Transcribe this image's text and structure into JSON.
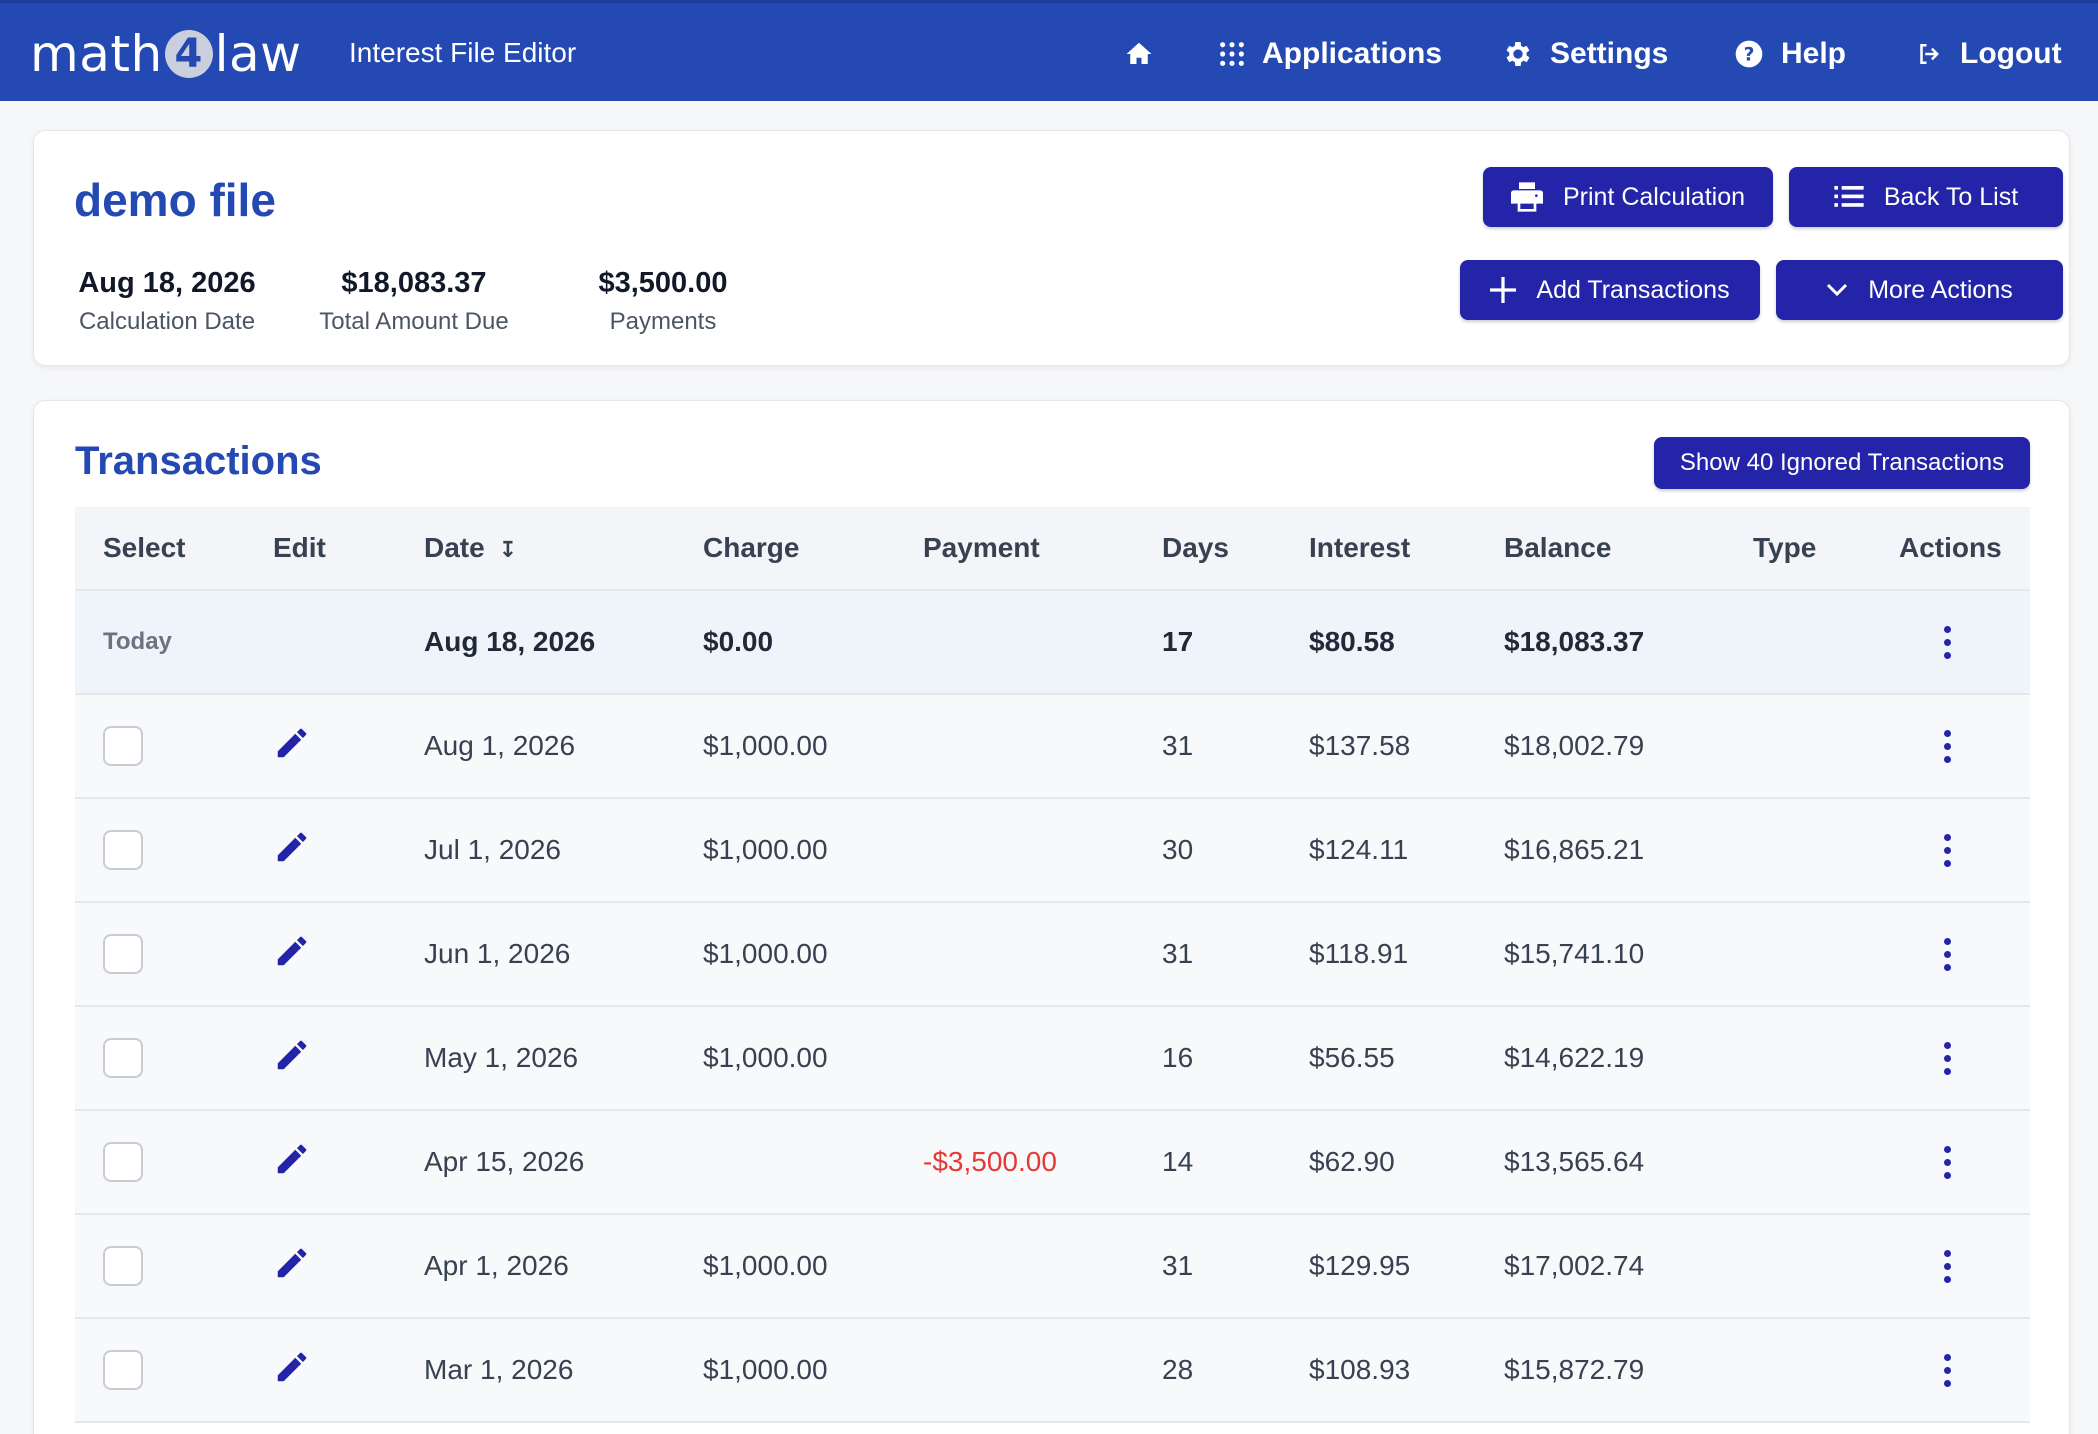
{
  "brand": {
    "prefix": "math",
    "digit": "4",
    "suffix": "law"
  },
  "app_title": "Interest File Editor",
  "nav": {
    "home_icon": "home-icon",
    "applications": "Applications",
    "settings": "Settings",
    "help": "Help",
    "logout": "Logout"
  },
  "file": {
    "title": "demo file",
    "stats": [
      {
        "value": "Aug 18, 2026",
        "label": "Calculation Date"
      },
      {
        "value": "$18,083.37",
        "label": "Total Amount Due"
      },
      {
        "value": "$3,500.00",
        "label": "Payments"
      }
    ],
    "buttons": {
      "print": "Print Calculation",
      "back": "Back To List",
      "add": "Add Transactions",
      "more": "More Actions"
    }
  },
  "transactions": {
    "title": "Transactions",
    "ignored_button": "Show 40 Ignored Transactions",
    "columns": [
      "Select",
      "Edit",
      "Date",
      "Charge",
      "Payment",
      "Days",
      "Interest",
      "Balance",
      "Type",
      "Actions"
    ],
    "today_row": {
      "label": "Today",
      "date": "Aug 18, 2026",
      "charge": "$0.00",
      "payment": "",
      "days": "17",
      "interest": "$80.58",
      "balance": "$18,083.37"
    },
    "rows": [
      {
        "date": "Aug 1, 2026",
        "charge": "$1,000.00",
        "payment": "",
        "days": "31",
        "interest": "$137.58",
        "balance": "$18,002.79"
      },
      {
        "date": "Jul 1, 2026",
        "charge": "$1,000.00",
        "payment": "",
        "days": "30",
        "interest": "$124.11",
        "balance": "$16,865.21"
      },
      {
        "date": "Jun 1, 2026",
        "charge": "$1,000.00",
        "payment": "",
        "days": "31",
        "interest": "$118.91",
        "balance": "$15,741.10"
      },
      {
        "date": "May 1, 2026",
        "charge": "$1,000.00",
        "payment": "",
        "days": "16",
        "interest": "$56.55",
        "balance": "$14,622.19"
      },
      {
        "date": "Apr 15, 2026",
        "charge": "",
        "payment": "-$3,500.00",
        "days": "14",
        "interest": "$62.90",
        "balance": "$13,565.64"
      },
      {
        "date": "Apr 1, 2026",
        "charge": "$1,000.00",
        "payment": "",
        "days": "31",
        "interest": "$129.95",
        "balance": "$17,002.74"
      },
      {
        "date": "Mar 1, 2026",
        "charge": "$1,000.00",
        "payment": "",
        "days": "28",
        "interest": "$108.93",
        "balance": "$15,872.79"
      }
    ]
  },
  "colors": {
    "nav_bg": "#2449b3",
    "button_bg": "#2424a8",
    "negative": "#e53935"
  }
}
